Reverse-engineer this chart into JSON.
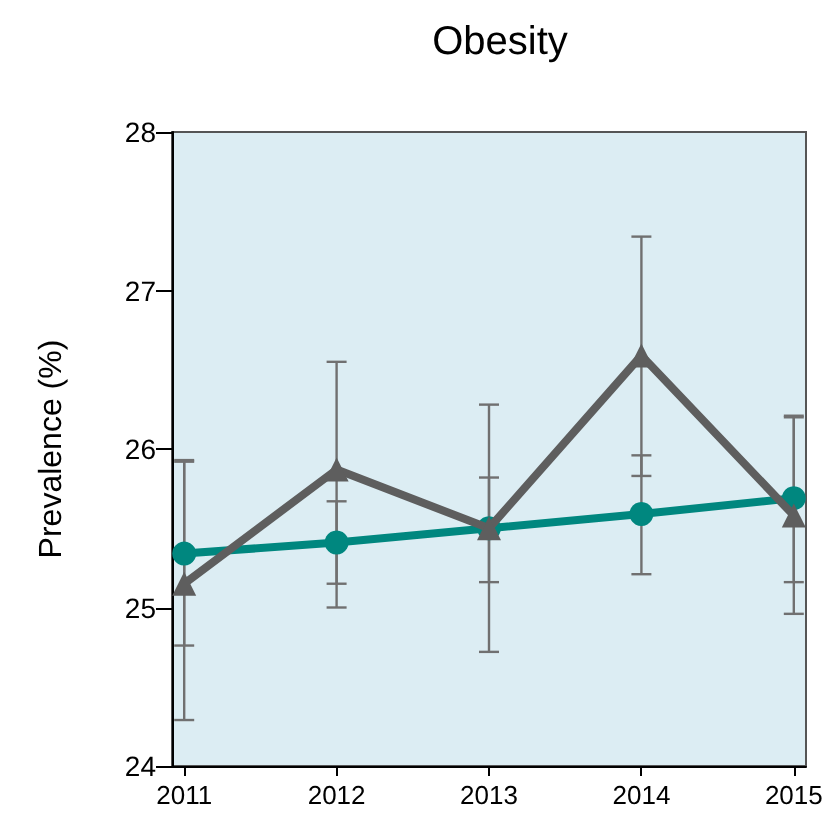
{
  "chart_data": {
    "type": "line",
    "title": "Obesity",
    "ylabel": "Prevalence (%)",
    "x": [
      2011,
      2012,
      2013,
      2014,
      2015
    ],
    "xlim": [
      2010.92,
      2015.08
    ],
    "xticks": [
      2011,
      2012,
      2013,
      2014,
      2015
    ],
    "ylim": [
      24,
      28
    ],
    "yticks": [
      24,
      25,
      26,
      27,
      28
    ],
    "grid": false,
    "series": [
      {
        "color": "#00877f",
        "marker": "circle",
        "values": [
          25.34,
          25.41,
          25.5,
          25.59,
          25.69
        ],
        "errors": [
          [
            24.76,
            25.92
          ],
          [
            25.15,
            25.67
          ],
          [
            25.16,
            25.82
          ],
          [
            25.21,
            25.96
          ],
          [
            25.16,
            26.2
          ]
        ]
      },
      {
        "color": "#5e5e5e",
        "marker": "triangle",
        "values": [
          25.15,
          25.87,
          25.5,
          26.59,
          25.58
        ],
        "errors": [
          [
            24.29,
            25.93
          ],
          [
            25.0,
            26.55
          ],
          [
            24.72,
            26.28
          ],
          [
            25.83,
            27.34
          ],
          [
            24.96,
            26.21
          ]
        ]
      }
    ]
  }
}
